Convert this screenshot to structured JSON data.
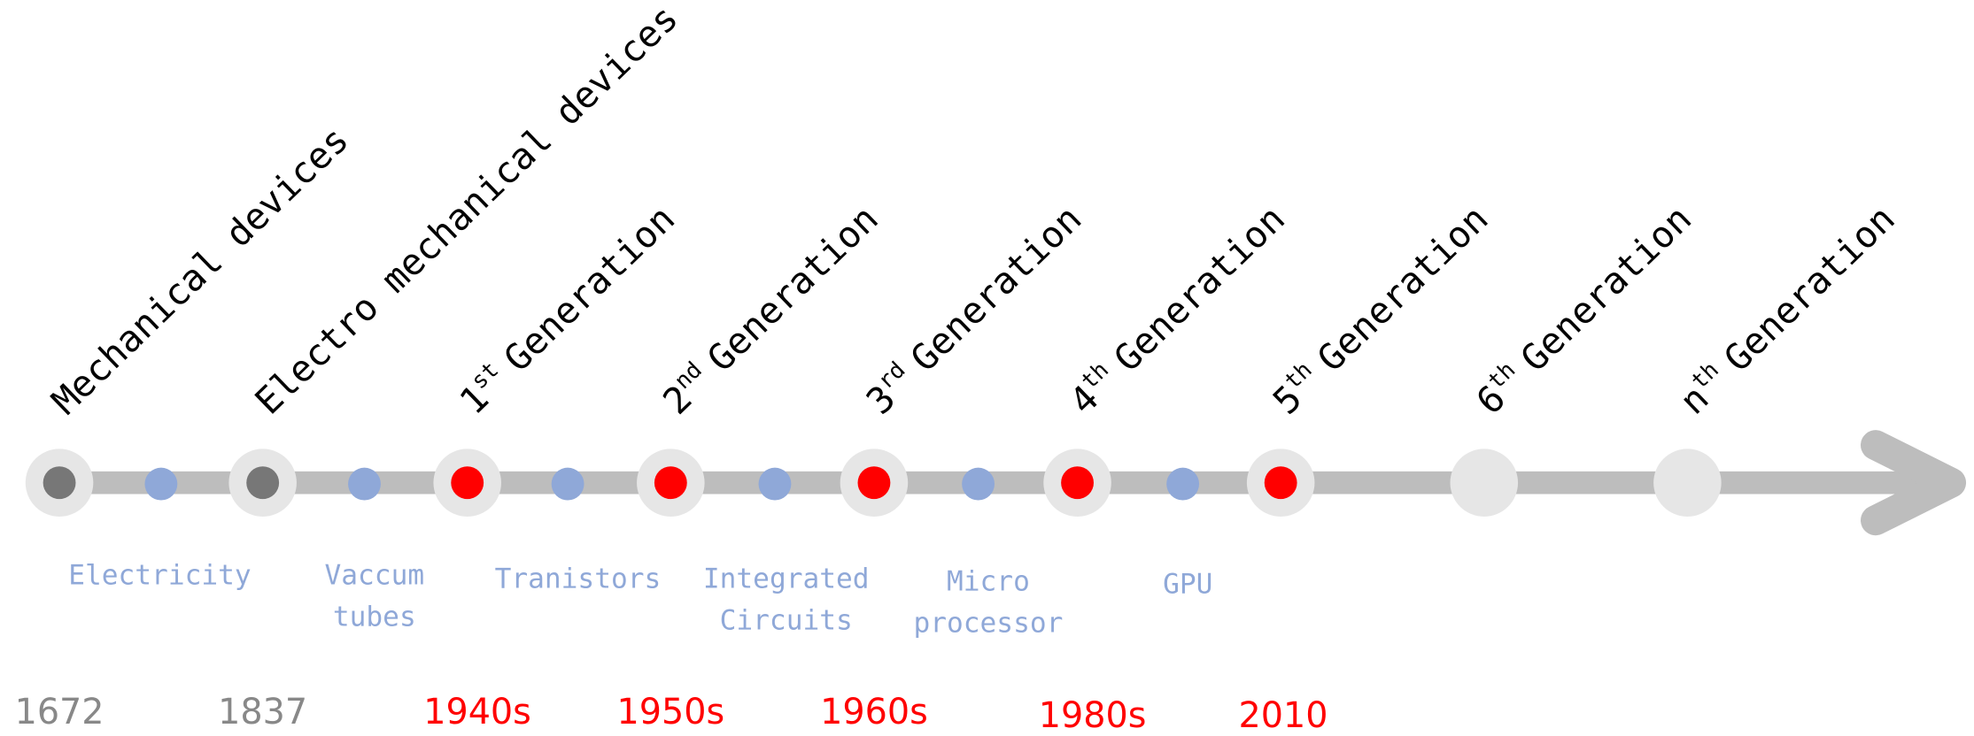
{
  "generations": [
    {
      "label": "Mechanical devices",
      "color": "#777777"
    },
    {
      "label": "Electro mechanical devices",
      "color": "#777777"
    },
    {
      "num": "1",
      "sup": "st",
      "label": "Generation",
      "color": "#ff0000"
    },
    {
      "num": "2",
      "sup": "nd",
      "label": "Generation",
      "color": "#ff0000"
    },
    {
      "num": "3",
      "sup": "rd",
      "label": "Generation",
      "color": "#ff0000"
    },
    {
      "num": "4",
      "sup": "th",
      "label": "Generation",
      "color": "#ff0000"
    },
    {
      "num": "5",
      "sup": "th",
      "label": "Generation",
      "color": "#ff0000"
    },
    {
      "num": "6",
      "sup": "th",
      "label": "Generation"
    },
    {
      "num": "n",
      "sup": "th",
      "label": "Generation"
    }
  ],
  "technologies": [
    {
      "lines": [
        "Electricity"
      ]
    },
    {
      "lines": [
        "Vaccum",
        "tubes"
      ]
    },
    {
      "lines": [
        "Tranistors"
      ]
    },
    {
      "lines": [
        "Integrated",
        "Circuits"
      ]
    },
    {
      "lines": [
        "Micro",
        "processor"
      ]
    },
    {
      "lines": [
        "GPU"
      ]
    }
  ],
  "years": [
    {
      "label": "1672",
      "color": "#888888"
    },
    {
      "label": "1837",
      "color": "#888888"
    },
    {
      "label": "1940s",
      "color": "#ff0000"
    },
    {
      "label": "1950s",
      "color": "#ff0000"
    },
    {
      "label": "1960s",
      "color": "#ff0000"
    },
    {
      "label": "1980s",
      "color": "#ff0000"
    },
    {
      "label": "2010",
      "color": "#ff0000"
    }
  ]
}
